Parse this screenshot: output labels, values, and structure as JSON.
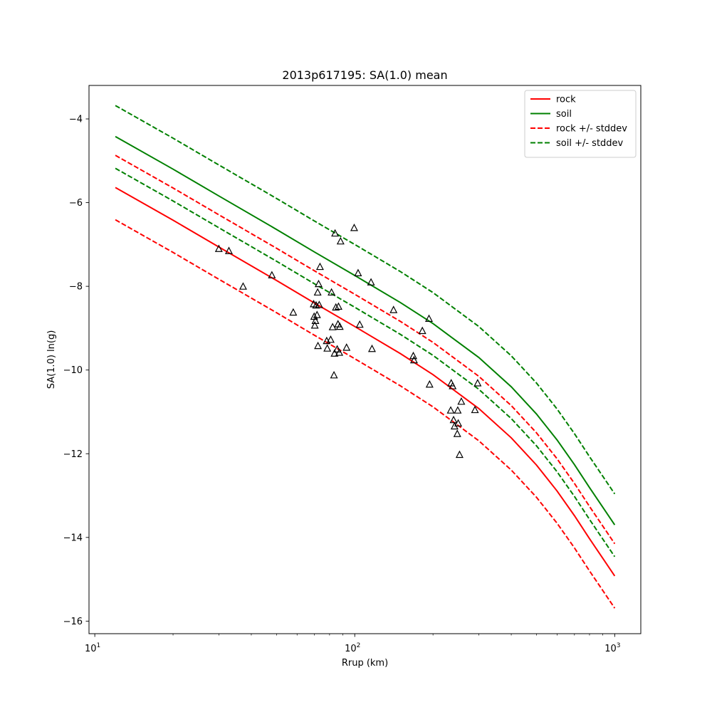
{
  "chart_data": {
    "type": "scatter",
    "title": "2013p617195: SA(1.0) mean",
    "xlabel": "Rrup (km)",
    "ylabel": "SA(1.0) ln(g)",
    "xscale": "log",
    "xlim": [
      9.5,
      1260
    ],
    "ylim": [
      -16.3,
      -3.2
    ],
    "grid": false,
    "legend_position": "top-right",
    "x_ticks": [
      {
        "value": 10,
        "base": "10",
        "exp": "1"
      },
      {
        "value": 100,
        "base": "10",
        "exp": "2"
      },
      {
        "value": 1000,
        "base": "10",
        "exp": "3"
      }
    ],
    "y_ticks": [
      {
        "value": -4,
        "label": "−4"
      },
      {
        "value": -6,
        "label": "−6"
      },
      {
        "value": -8,
        "label": "−8"
      },
      {
        "value": -10,
        "label": "−10"
      },
      {
        "value": -12,
        "label": "−12"
      },
      {
        "value": -14,
        "label": "−14"
      },
      {
        "value": -16,
        "label": "−16"
      }
    ],
    "series": [
      {
        "name": "rock",
        "color": "#ff0000",
        "style": "solid",
        "x": [
          12,
          20,
          30,
          50,
          70,
          100,
          150,
          200,
          300,
          400,
          500,
          600,
          700,
          800,
          900,
          1000
        ],
        "y": [
          -5.64,
          -6.42,
          -7.06,
          -7.86,
          -8.4,
          -8.96,
          -9.61,
          -10.11,
          -10.92,
          -11.62,
          -12.27,
          -12.89,
          -13.48,
          -14.03,
          -14.5,
          -14.92
        ]
      },
      {
        "name": "soil",
        "color": "#008000",
        "style": "solid",
        "x": [
          12,
          20,
          30,
          50,
          70,
          100,
          150,
          200,
          300,
          400,
          500,
          600,
          700,
          800,
          900,
          1000
        ],
        "y": [
          -4.42,
          -5.2,
          -5.84,
          -6.64,
          -7.18,
          -7.74,
          -8.39,
          -8.89,
          -9.7,
          -10.4,
          -11.05,
          -11.67,
          -12.26,
          -12.81,
          -13.28,
          -13.7
        ]
      },
      {
        "name": "rock +/- stddev",
        "color": "#ff0000",
        "style": "dashed",
        "x": [
          12,
          20,
          30,
          50,
          70,
          100,
          150,
          200,
          300,
          400,
          500,
          600,
          700,
          800,
          900,
          1000
        ],
        "y": [
          -4.87,
          -5.65,
          -6.29,
          -7.09,
          -7.63,
          -8.19,
          -8.84,
          -9.34,
          -10.15,
          -10.85,
          -11.5,
          -12.12,
          -12.71,
          -13.26,
          -13.73,
          -14.15
        ]
      },
      {
        "name": "",
        "color": "#ff0000",
        "style": "dashed",
        "x": [
          12,
          20,
          30,
          50,
          70,
          100,
          150,
          200,
          300,
          400,
          500,
          600,
          700,
          800,
          900,
          1000
        ],
        "y": [
          -6.41,
          -7.19,
          -7.83,
          -8.63,
          -9.17,
          -9.73,
          -10.38,
          -10.88,
          -11.69,
          -12.39,
          -13.04,
          -13.66,
          -14.25,
          -14.8,
          -15.27,
          -15.69
        ]
      },
      {
        "name": "soil +/- stddev",
        "color": "#008000",
        "style": "dashed",
        "x": [
          12,
          20,
          30,
          50,
          70,
          100,
          150,
          200,
          300,
          400,
          500,
          600,
          700,
          800,
          900,
          1000
        ],
        "y": [
          -3.68,
          -4.46,
          -5.1,
          -5.9,
          -6.44,
          -7.0,
          -7.65,
          -8.15,
          -8.96,
          -9.66,
          -10.31,
          -10.93,
          -11.52,
          -12.07,
          -12.54,
          -12.96
        ]
      },
      {
        "name": "",
        "color": "#008000",
        "style": "dashed",
        "x": [
          12,
          20,
          30,
          50,
          70,
          100,
          150,
          200,
          300,
          400,
          500,
          600,
          700,
          800,
          900,
          1000
        ],
        "y": [
          -5.18,
          -5.96,
          -6.6,
          -7.4,
          -7.94,
          -8.5,
          -9.15,
          -9.65,
          -10.46,
          -11.16,
          -11.81,
          -12.43,
          -13.02,
          -13.57,
          -14.04,
          -14.46
        ]
      }
    ],
    "observations": {
      "marker": "triangle",
      "points": [
        [
          30,
          -7.1
        ],
        [
          32.8,
          -7.15
        ],
        [
          37.2,
          -8.0
        ],
        [
          48,
          -7.73
        ],
        [
          58,
          -8.62
        ],
        [
          69.5,
          -8.42
        ],
        [
          69.8,
          -8.72
        ],
        [
          70.2,
          -8.93
        ],
        [
          70.6,
          -8.82
        ],
        [
          71,
          -8.45
        ],
        [
          71.6,
          -8.68
        ],
        [
          72,
          -8.14
        ],
        [
          72.2,
          -9.42
        ],
        [
          72.6,
          -7.94
        ],
        [
          73,
          -8.44
        ],
        [
          73.5,
          -7.53
        ],
        [
          78,
          -9.3
        ],
        [
          78.4,
          -9.48
        ],
        [
          80.8,
          -9.27
        ],
        [
          81.4,
          -8.14
        ],
        [
          82.2,
          -8.97
        ],
        [
          83.2,
          -10.12
        ],
        [
          83.6,
          -9.6
        ],
        [
          84,
          -6.73
        ],
        [
          84.6,
          -8.5
        ],
        [
          85.6,
          -9.5
        ],
        [
          86.2,
          -8.9
        ],
        [
          86.6,
          -8.48
        ],
        [
          87.2,
          -9.58
        ],
        [
          87.6,
          -8.96
        ],
        [
          88.2,
          -6.92
        ],
        [
          93,
          -9.46
        ],
        [
          99.5,
          -6.6
        ],
        [
          103,
          -7.68
        ],
        [
          104.5,
          -8.91
        ],
        [
          115.5,
          -7.9
        ],
        [
          116.5,
          -9.49
        ],
        [
          141,
          -8.56
        ],
        [
          168,
          -9.66
        ],
        [
          169,
          -9.76
        ],
        [
          182,
          -9.06
        ],
        [
          193,
          -8.77
        ],
        [
          194,
          -10.34
        ],
        [
          234,
          -10.96
        ],
        [
          235,
          -10.31
        ],
        [
          238,
          -10.38
        ],
        [
          240,
          -11.19
        ],
        [
          242,
          -11.34
        ],
        [
          248,
          -11.52
        ],
        [
          249,
          -10.96
        ],
        [
          250,
          -11.27
        ],
        [
          253,
          -12.02
        ],
        [
          257,
          -10.75
        ],
        [
          290,
          -10.95
        ],
        [
          297,
          -10.31
        ]
      ]
    }
  }
}
